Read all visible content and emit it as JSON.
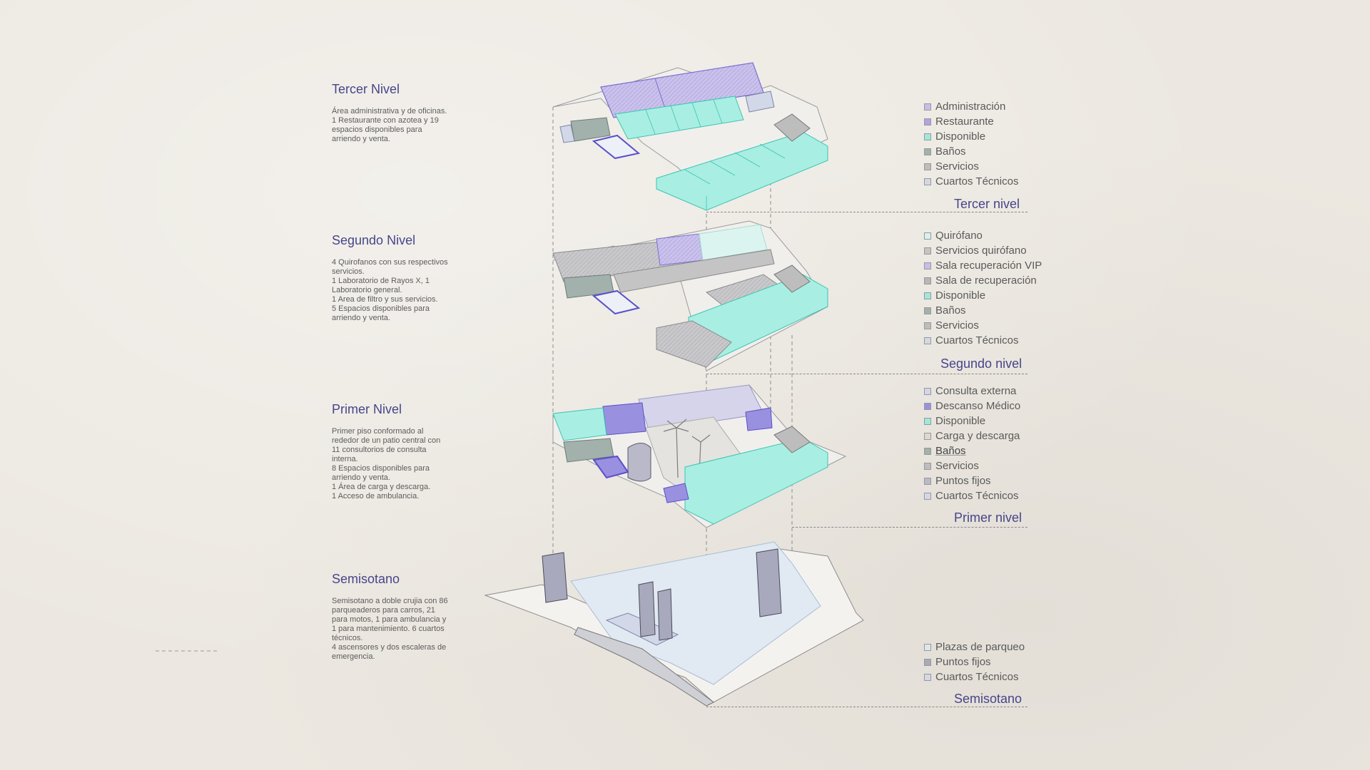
{
  "levels": [
    {
      "title": "Tercer Nivel",
      "description": "Área administrativa y de oficinas.\n1 Restaurante con azotea y 19\nespacios disponibles para\narriendo y venta.",
      "legend_name": "Tercer nivel",
      "legend": [
        {
          "label": "Administración",
          "color": "#c8bde8"
        },
        {
          "label": "Restaurante",
          "color": "#b0a4e4"
        },
        {
          "label": "Disponible",
          "color": "#9fe8dc"
        },
        {
          "label": "Baños",
          "color": "#a3b1ac"
        },
        {
          "label": "Servicios",
          "color": "#bdbdbd"
        },
        {
          "label": "Cuartos Técnicos",
          "color": "#d2d8e8"
        }
      ]
    },
    {
      "title": "Segundo Nivel",
      "description": "4 Quirofanos con sus respectivos\nservicios.\n1 Laboratorio de Rayos X, 1\nLaboratorio general.\n1 Area de filtro y sus servicios.\n5 Espacios disponibles para\narriendo y venta.",
      "legend_name": "Segundo nivel",
      "legend": [
        {
          "label": "Quirófano",
          "color": "#d6f2ee"
        },
        {
          "label": "Servicios quirófano",
          "color": "#c4c4c4"
        },
        {
          "label": "Sala recuperación VIP",
          "color": "#c8bde8"
        },
        {
          "label": "Sala de recuperación",
          "color": "#b7b7b7"
        },
        {
          "label": "Disponible",
          "color": "#9fe8dc"
        },
        {
          "label": "Baños",
          "color": "#a3b1ac"
        },
        {
          "label": "Servicios",
          "color": "#bdbdbd"
        },
        {
          "label": "Cuartos Técnicos",
          "color": "#d2d8e8"
        }
      ]
    },
    {
      "title": "Primer Nivel",
      "description": "Primer piso conformado al\nrededor de un patio central con\n11 consultorios de consulta\ninterna.\n8 Espacios disponibles para\narriendo y venta.\n1 Área de carga y descarga.\n1 Acceso de ambulancia.",
      "legend_name": "Primer nivel",
      "legend": [
        {
          "label": "Consulta externa",
          "color": "#d6d4ea"
        },
        {
          "label": "Descanso Médico",
          "color": "#9a90e0"
        },
        {
          "label": "Disponible",
          "color": "#9fe8dc"
        },
        {
          "label": "Carga y descarga",
          "color": "#dcd8d2"
        },
        {
          "label": "Baños",
          "color": "#a3b1ac"
        },
        {
          "label": "Servicios",
          "color": "#bdbdbd"
        },
        {
          "label": "Puntos fijos",
          "color": "#b9b9c9"
        },
        {
          "label": "Cuartos Técnicos",
          "color": "#d2d8e8"
        }
      ]
    },
    {
      "title": "Semisotano",
      "description": "Semisotano a doble crujia con 86\nparqueaderos para carros, 21\npara motos, 1 para ambulancia y\n1 para mantenimiento. 6 cuartos\ntécnicos.\n4 ascensores y dos escaleras de\nemergencia.",
      "legend_name": "Semisotano",
      "legend": [
        {
          "label": "Plazas de parqueo",
          "color": "#dbe6f0"
        },
        {
          "label": "Puntos fijos",
          "color": "#a9a9bd"
        },
        {
          "label": "Cuartos Técnicos",
          "color": "#d2d8e8"
        }
      ]
    }
  ]
}
